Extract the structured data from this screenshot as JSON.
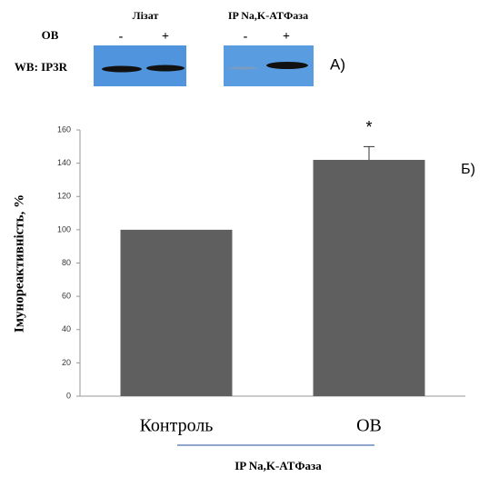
{
  "blot": {
    "lysate_title": "Лізат",
    "ip_title": "IP Na,K-ATФаза",
    "row_label": "OB",
    "blot_label": "WB: IP3R",
    "lanes": [
      "-",
      "+",
      "-",
      "+"
    ],
    "panel_label": "A)"
  },
  "chart_data": {
    "type": "bar",
    "y_label": "Імунореактивність, %",
    "x_label": "IP Na,K-ATФаза",
    "categories": [
      "Контроль",
      "OB"
    ],
    "values": [
      100,
      142
    ],
    "errors": [
      null,
      8
    ],
    "color": "#5f5f5f",
    "annotation": "*",
    "panel_label": "Б)",
    "ylim": [
      0,
      160
    ],
    "yticks": [
      0,
      20,
      40,
      60,
      80,
      100,
      120,
      140,
      160
    ]
  }
}
